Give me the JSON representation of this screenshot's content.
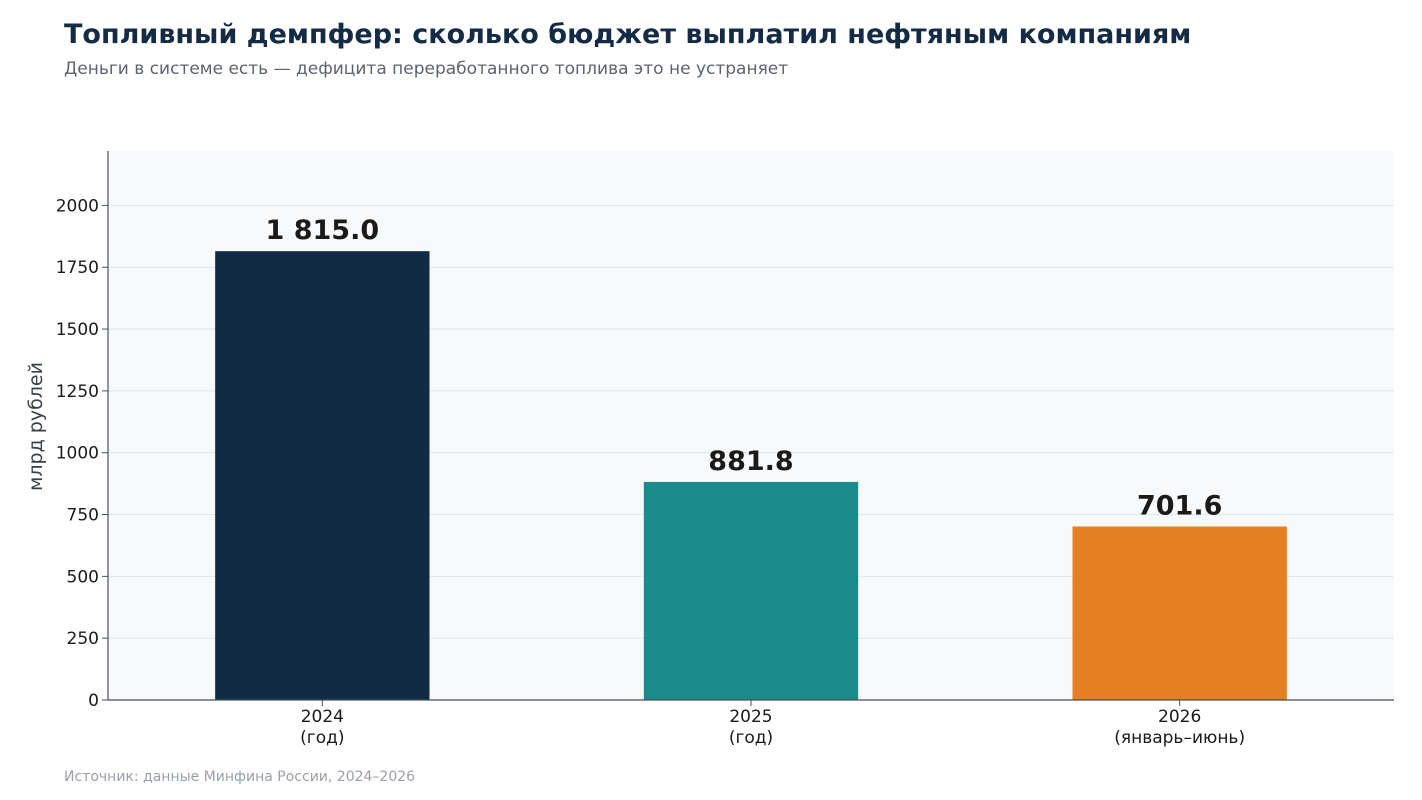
{
  "title": "Топливный демпфер: сколько бюджет выплатил нефтяным компаниям",
  "subtitle": "Деньги в системе есть — дефицита переработанного топлива это не устраняет",
  "source": "Источник: данные Минфина России, 2024–2026",
  "colors": {
    "plot_bg": "#f7f9fb",
    "grid": "#e1e5ea",
    "axis": "#4a4f57"
  },
  "chart_data": {
    "type": "bar",
    "categories": [
      [
        "2024",
        "(год)"
      ],
      [
        "2025",
        "(год)"
      ],
      [
        "2026",
        "(январь–июнь)"
      ]
    ],
    "values": [
      1815.0,
      881.8,
      701.6
    ],
    "value_labels": [
      "1 815.0",
      "881.8",
      "701.6"
    ],
    "bar_colors": [
      "#122b44",
      "#1b8a8a",
      "#e67e22"
    ],
    "ylabel": "млрд рублей",
    "ylim": [
      0,
      2220
    ],
    "yticks": [
      0,
      250,
      500,
      750,
      1000,
      1250,
      1500,
      1750,
      2000
    ],
    "grid": true,
    "legend": "none"
  }
}
